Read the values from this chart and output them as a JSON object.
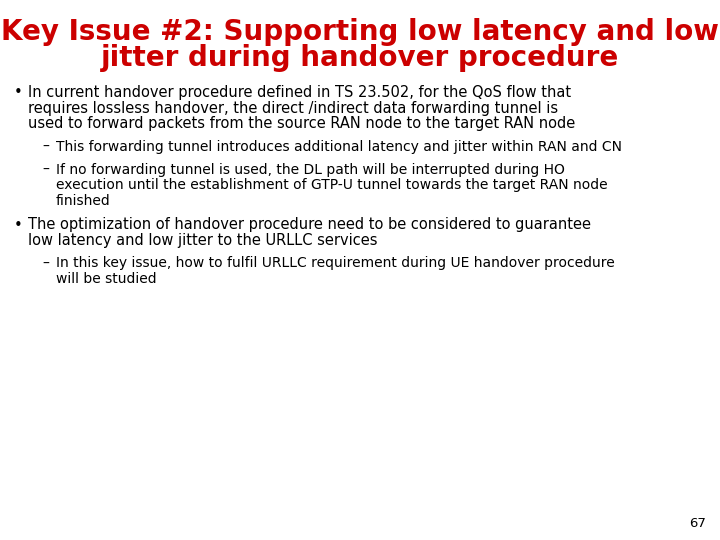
{
  "title_line1": "Key Issue #2: Supporting low latency and low",
  "title_line2": "jitter during handover procedure",
  "title_color": "#cc0000",
  "title_fontsize": 20,
  "body_fontsize": 10.5,
  "sub_fontsize": 10,
  "background_color": "#ffffff",
  "text_color": "#000000",
  "page_number": "67",
  "bullet1_lines": [
    "In current handover procedure defined in TS 23.502, for the QoS flow that",
    "requires lossless handover, the direct /indirect data forwarding tunnel is",
    "used to forward packets from the source RAN node to the target RAN node"
  ],
  "sub1a": "This forwarding tunnel introduces additional latency and jitter within RAN and CN",
  "sub1b_lines": [
    "If no forwarding tunnel is used, the DL path will be interrupted during HO",
    "execution until the establishment of GTP-U tunnel towards the target RAN node",
    "finished"
  ],
  "bullet2_lines": [
    "The optimization of handover procedure need to be considered to guarantee",
    "low latency and low jitter to the URLLC services"
  ],
  "sub2a_lines": [
    "In this key issue, how to fulfil URLLC requirement during UE handover procedure",
    "will be studied"
  ]
}
